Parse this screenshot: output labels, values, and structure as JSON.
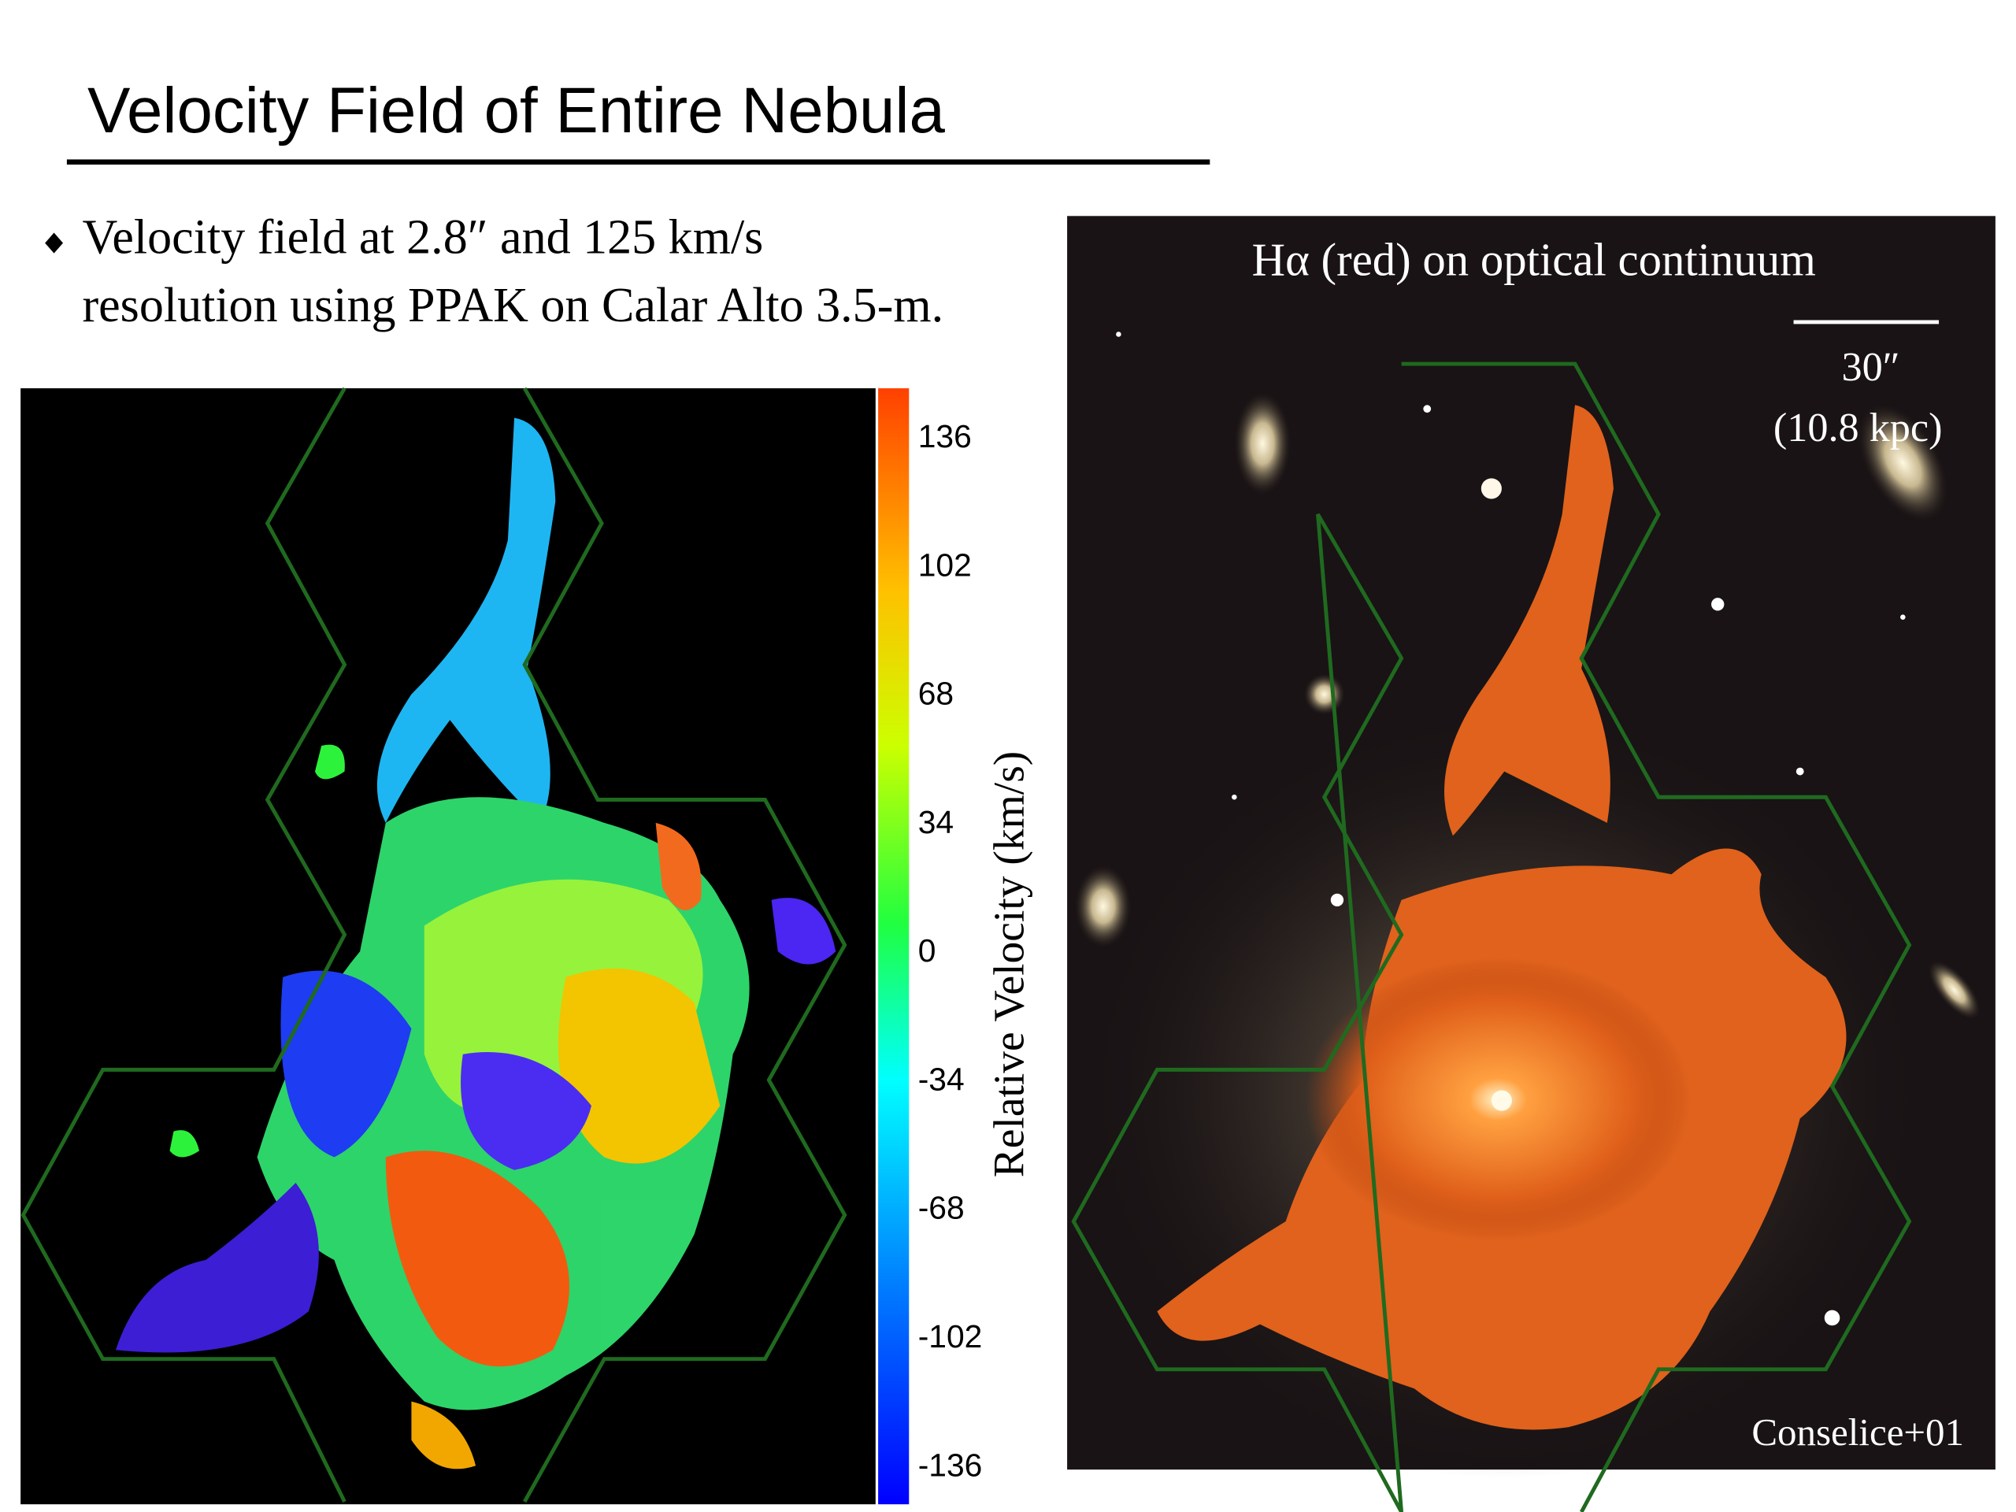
{
  "header": {
    "title": "Velocity Field of Entire Nebula"
  },
  "bullet": {
    "lines": [
      "Velocity field at 2.8″ and 125 km/s",
      "resolution using PPAK on Calar Alto 3.5-m."
    ]
  },
  "velocity_map": {
    "colorbar_ticks": [
      136,
      102,
      68,
      34,
      0,
      -34,
      -68,
      -102,
      -136
    ],
    "colorbar_label": "Relative Velocity (km/s)"
  },
  "halpha_image": {
    "caption": "Hα (red) on optical continuum",
    "scale_bar": [
      "30″",
      "(10.8 kpc)"
    ],
    "credit": "Conselice+01"
  }
}
